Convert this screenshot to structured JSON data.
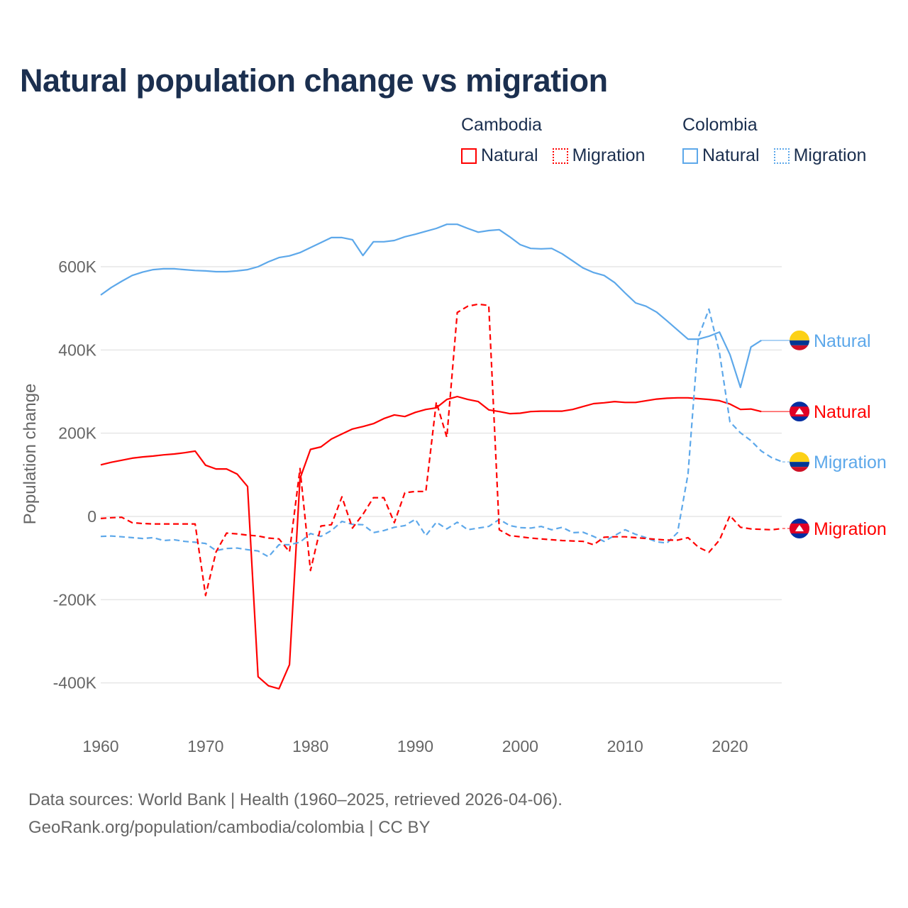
{
  "title": "Natural population change vs migration",
  "legend": {
    "groups": [
      {
        "country": "Cambodia",
        "color": "#ff0000",
        "items": [
          "Natural",
          "Migration"
        ]
      },
      {
        "country": "Colombia",
        "color": "#5da8ea",
        "items": [
          "Natural",
          "Migration"
        ]
      }
    ]
  },
  "footer": {
    "line1": "Data sources: World Bank | Health (1960–2025, retrieved 2026-04-06).",
    "line2": "GeoRank.org/population/cambodia/colombia | CC BY"
  },
  "chart_data": {
    "type": "line",
    "title": "Natural population change vs migration",
    "xlabel": "",
    "ylabel": "Population change",
    "xlim": [
      1960,
      2025
    ],
    "ylim": [
      -500,
      750
    ],
    "y_unit": "thousands",
    "x_ticks": [
      1960,
      1970,
      1980,
      1990,
      2000,
      2010,
      2020
    ],
    "y_ticks": [
      {
        "value": -400,
        "label": "-400K"
      },
      {
        "value": -200,
        "label": "-200K"
      },
      {
        "value": 0,
        "label": "0"
      },
      {
        "value": 200,
        "label": "200K"
      },
      {
        "value": 400,
        "label": "400K"
      },
      {
        "value": 600,
        "label": "600K"
      }
    ],
    "grid": true,
    "legend_position": "top-right",
    "x_start": 1960,
    "series": [
      {
        "name": "Colombia Natural",
        "label": "Natural",
        "country": "Colombia",
        "color": "#5da8ea",
        "dash": false,
        "values": [
          532,
          550,
          565,
          579,
          587,
          593,
          595,
          595,
          593,
          591,
          590,
          588,
          588,
          590,
          593,
          600,
          612,
          622,
          626,
          634,
          646,
          658,
          670,
          670,
          665,
          627,
          660,
          660,
          663,
          672,
          678,
          685,
          692,
          702,
          702,
          692,
          683,
          687,
          689,
          672,
          653,
          644,
          643,
          644,
          631,
          614,
          597,
          586,
          579,
          562,
          537,
          513,
          505,
          491,
          470,
          448,
          426,
          426,
          433,
          443,
          389,
          310,
          407,
          423
        ]
      },
      {
        "name": "Cambodia Natural",
        "label": "Natural",
        "country": "Cambodia",
        "color": "#ff0000",
        "dash": false,
        "values": [
          124,
          130,
          135,
          140,
          143,
          145,
          148,
          150,
          153,
          157,
          123,
          114,
          114,
          102,
          72,
          -385,
          -407,
          -414,
          -356,
          91,
          161,
          167,
          186,
          198,
          210,
          216,
          223,
          235,
          244,
          240,
          250,
          257,
          261,
          281,
          288,
          281,
          276,
          256,
          252,
          247,
          248,
          252,
          253,
          253,
          253,
          257,
          264,
          271,
          273,
          276,
          274,
          274,
          278,
          282,
          284,
          285,
          285,
          283,
          281,
          278,
          270,
          257,
          258,
          252
        ]
      },
      {
        "name": "Colombia Migration",
        "label": "Migration",
        "country": "Colombia",
        "color": "#5da8ea",
        "dash": true,
        "values": [
          -48,
          -47,
          -49,
          -51,
          -53,
          -51,
          -58,
          -56,
          -60,
          -62,
          -65,
          -82,
          -77,
          -76,
          -80,
          -83,
          -97,
          -68,
          -68,
          -62,
          -41,
          -48,
          -34,
          -12,
          -19,
          -20,
          -39,
          -34,
          -26,
          -22,
          -7,
          -46,
          -14,
          -30,
          -14,
          -32,
          -28,
          -24,
          -7,
          -22,
          -27,
          -28,
          -24,
          -32,
          -26,
          -39,
          -38,
          -48,
          -60,
          -46,
          -32,
          -43,
          -51,
          -61,
          -64,
          -39,
          102,
          431,
          498,
          394,
          227,
          201,
          182,
          157,
          141,
          131
        ]
      },
      {
        "name": "Cambodia Migration",
        "label": "Migration",
        "country": "Cambodia",
        "color": "#ff0000",
        "dash": true,
        "values": [
          -5,
          -3,
          -2,
          -15,
          -17,
          -18,
          -18,
          -18,
          -18,
          -18,
          -190,
          -85,
          -40,
          -42,
          -45,
          -47,
          -52,
          -54,
          -85,
          115,
          -130,
          -23,
          -20,
          47,
          -28,
          5,
          45,
          45,
          -15,
          57,
          60,
          60,
          275,
          190,
          490,
          505,
          510,
          507,
          -32,
          -46,
          -49,
          -52,
          -54,
          -56,
          -58,
          -59,
          -60,
          -68,
          -50,
          -49,
          -49,
          -51,
          -53,
          -55,
          -57,
          -57,
          -51,
          -74,
          -86,
          -57,
          2,
          -26,
          -30,
          -31,
          -32,
          -29
        ]
      }
    ]
  }
}
